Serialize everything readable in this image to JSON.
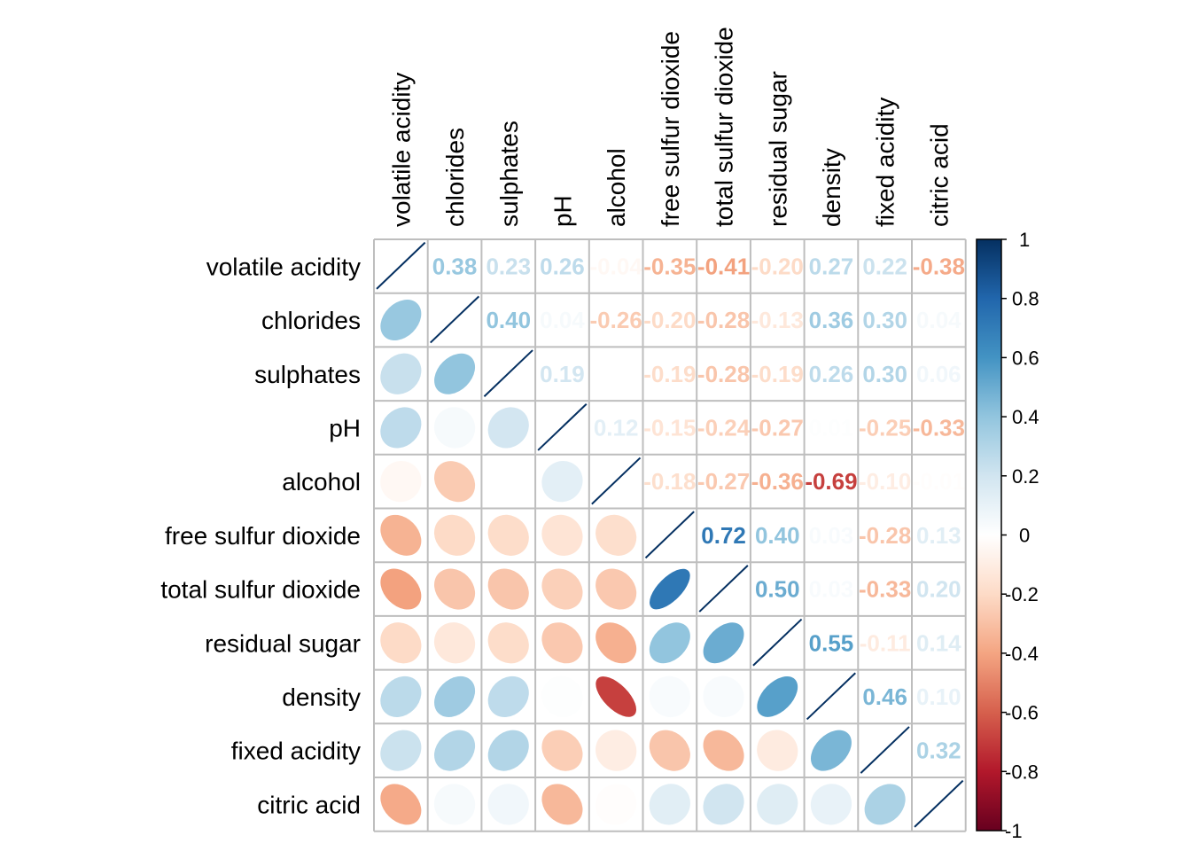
{
  "chart_data": {
    "type": "heatmap",
    "subtype": "correlation-matrix-mixed",
    "lower_method": "ellipse",
    "upper_method": "number",
    "variables": [
      "volatile acidity",
      "chlorides",
      "sulphates",
      "pH",
      "alcohol",
      "free sulfur dioxide",
      "total sulfur dioxide",
      "residual sugar",
      "density",
      "fixed acidity",
      "citric acid"
    ],
    "matrix": [
      [
        1.0,
        0.38,
        0.23,
        0.26,
        -0.04,
        -0.35,
        -0.41,
        -0.2,
        0.27,
        0.22,
        -0.38
      ],
      [
        0.38,
        1.0,
        0.4,
        0.04,
        -0.26,
        -0.2,
        -0.28,
        -0.13,
        0.36,
        0.3,
        0.04
      ],
      [
        0.23,
        0.4,
        1.0,
        0.19,
        0.0,
        -0.19,
        -0.28,
        -0.19,
        0.26,
        0.3,
        0.06
      ],
      [
        0.26,
        0.04,
        0.19,
        1.0,
        0.12,
        -0.15,
        -0.24,
        -0.27,
        0.01,
        -0.25,
        -0.33
      ],
      [
        -0.04,
        -0.26,
        0.0,
        0.12,
        1.0,
        -0.18,
        -0.27,
        -0.36,
        -0.69,
        -0.1,
        -0.01
      ],
      [
        -0.35,
        -0.2,
        -0.19,
        -0.15,
        -0.18,
        1.0,
        0.72,
        0.4,
        0.03,
        -0.28,
        0.13
      ],
      [
        -0.41,
        -0.28,
        -0.28,
        -0.24,
        -0.27,
        0.72,
        1.0,
        0.5,
        0.03,
        -0.33,
        0.2
      ],
      [
        -0.2,
        -0.13,
        -0.19,
        -0.27,
        -0.36,
        0.4,
        0.5,
        1.0,
        0.55,
        -0.11,
        0.14
      ],
      [
        0.27,
        0.36,
        0.26,
        0.01,
        -0.69,
        0.03,
        0.03,
        0.55,
        1.0,
        0.46,
        0.1
      ],
      [
        0.22,
        0.3,
        0.3,
        -0.25,
        -0.1,
        -0.28,
        -0.33,
        -0.11,
        0.46,
        1.0,
        0.32
      ],
      [
        -0.38,
        0.04,
        0.06,
        -0.33,
        -0.01,
        0.13,
        0.2,
        0.14,
        0.1,
        0.32,
        1.0
      ]
    ],
    "colorbar": {
      "range": [
        -1,
        1
      ],
      "ticks": [
        "1",
        "0.8",
        "0.6",
        "0.4",
        "0.2",
        "0",
        "-0.2",
        "-0.4",
        "-0.6",
        "-0.8",
        "-1"
      ],
      "tick_values": [
        1,
        0.8,
        0.6,
        0.4,
        0.2,
        0,
        -0.2,
        -0.4,
        -0.6,
        -0.8,
        -1
      ],
      "palette": [
        "#67001F",
        "#B2182B",
        "#D6604D",
        "#F4A582",
        "#FDDBC7",
        "#FFFFFF",
        "#D1E5F0",
        "#92C5DE",
        "#4393C3",
        "#2166AC",
        "#053061"
      ],
      "placement": "right"
    },
    "grid": true,
    "title": "",
    "xlabel": "",
    "ylabel": ""
  }
}
